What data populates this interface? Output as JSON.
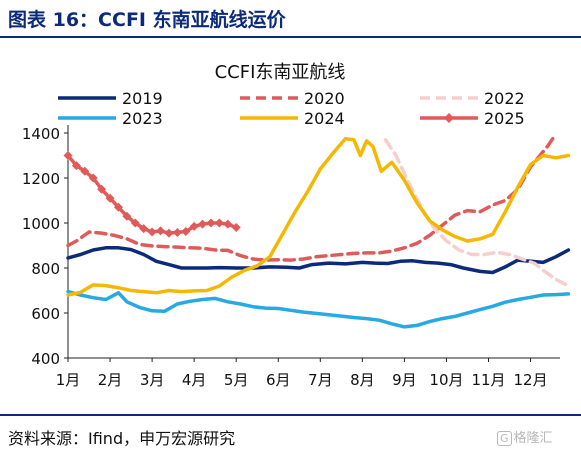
{
  "header": {
    "title": "图表 16：CCFI 东南亚航线运价"
  },
  "footer": {
    "source": "资料来源：Ifind，申万宏源研究",
    "watermark_icon": "G",
    "watermark_text": "格隆汇"
  },
  "chart_data": {
    "type": "line",
    "title": "CCFI东南亚航线",
    "ylim": [
      400,
      1400
    ],
    "yticks": [
      400,
      600,
      800,
      1000,
      1200,
      1400
    ],
    "xlim": [
      1,
      12.7
    ],
    "xticks": [
      {
        "label": "1月",
        "x": 1
      },
      {
        "label": "2月",
        "x": 2
      },
      {
        "label": "3月",
        "x": 3
      },
      {
        "label": "4月",
        "x": 4
      },
      {
        "label": "5月",
        "x": 5
      },
      {
        "label": "6月",
        "x": 6
      },
      {
        "label": "7月",
        "x": 7
      },
      {
        "label": "8月",
        "x": 8
      },
      {
        "label": "9月",
        "x": 9
      },
      {
        "label": "10月",
        "x": 10
      },
      {
        "label": "11月",
        "x": 11
      },
      {
        "label": "12月",
        "x": 12
      }
    ],
    "series": [
      {
        "name": "2019",
        "color": "#0b2a7a",
        "dash": "solid",
        "marker": "none",
        "points": [
          [
            1,
            845
          ],
          [
            1.3,
            860
          ],
          [
            1.6,
            880
          ],
          [
            1.9,
            890
          ],
          [
            2.2,
            890
          ],
          [
            2.5,
            882
          ],
          [
            2.8,
            860
          ],
          [
            3.1,
            830
          ],
          [
            3.4,
            815
          ],
          [
            3.7,
            800
          ],
          [
            4,
            800
          ],
          [
            4.3,
            800
          ],
          [
            4.6,
            802
          ],
          [
            5,
            800
          ],
          [
            5.4,
            800
          ],
          [
            5.8,
            805
          ],
          [
            6.2,
            803
          ],
          [
            6.5,
            800
          ],
          [
            6.8,
            815
          ],
          [
            7.2,
            822
          ],
          [
            7.6,
            818
          ],
          [
            8,
            825
          ],
          [
            8.3,
            822
          ],
          [
            8.6,
            820
          ],
          [
            8.9,
            830
          ],
          [
            9.2,
            832
          ],
          [
            9.5,
            825
          ],
          [
            9.8,
            822
          ],
          [
            10.1,
            815
          ],
          [
            10.4,
            800
          ],
          [
            10.8,
            785
          ],
          [
            11.1,
            780
          ],
          [
            11.4,
            805
          ],
          [
            11.7,
            835
          ],
          [
            12,
            830
          ],
          [
            12.3,
            825
          ],
          [
            12.6,
            850
          ],
          [
            12.9,
            880
          ]
        ]
      },
      {
        "name": "2020",
        "color": "#e05a5a",
        "dash": "dashed",
        "marker": "none",
        "points": [
          [
            1,
            900
          ],
          [
            1.2,
            920
          ],
          [
            1.5,
            960
          ],
          [
            1.8,
            955
          ],
          [
            2.1,
            945
          ],
          [
            2.4,
            930
          ],
          [
            2.7,
            905
          ],
          [
            3,
            898
          ],
          [
            3.3,
            895
          ],
          [
            3.6,
            893
          ],
          [
            3.9,
            890
          ],
          [
            4.2,
            888
          ],
          [
            4.5,
            880
          ],
          [
            4.8,
            878
          ],
          [
            5.1,
            855
          ],
          [
            5.4,
            840
          ],
          [
            5.7,
            835
          ],
          [
            6,
            837
          ],
          [
            6.3,
            835
          ],
          [
            6.6,
            840
          ],
          [
            6.9,
            850
          ],
          [
            7.2,
            855
          ],
          [
            7.5,
            860
          ],
          [
            7.8,
            865
          ],
          [
            8.1,
            867
          ],
          [
            8.4,
            867
          ],
          [
            8.7,
            875
          ],
          [
            9,
            890
          ],
          [
            9.3,
            910
          ],
          [
            9.6,
            945
          ],
          [
            9.9,
            990
          ],
          [
            10.2,
            1035
          ],
          [
            10.5,
            1055
          ],
          [
            10.8,
            1050
          ],
          [
            11.1,
            1080
          ],
          [
            11.4,
            1100
          ],
          [
            11.7,
            1150
          ],
          [
            12,
            1250
          ],
          [
            12.4,
            1340
          ],
          [
            12.6,
            1395
          ]
        ]
      },
      {
        "name": "2022",
        "color": "#f6cece",
        "dash": "dashed",
        "marker": "none",
        "points": [
          [
            8.55,
            1370
          ],
          [
            8.8,
            1300
          ],
          [
            9.1,
            1180
          ],
          [
            9.4,
            1070
          ],
          [
            9.7,
            980
          ],
          [
            10,
            920
          ],
          [
            10.3,
            880
          ],
          [
            10.6,
            860
          ],
          [
            10.9,
            860
          ],
          [
            11.2,
            870
          ],
          [
            11.5,
            860
          ],
          [
            11.8,
            840
          ],
          [
            12.1,
            820
          ],
          [
            12.3,
            790
          ],
          [
            12.6,
            750
          ],
          [
            12.9,
            720
          ]
        ]
      },
      {
        "name": "2023",
        "color": "#27a9e1",
        "dash": "solid",
        "marker": "none",
        "points": [
          [
            1,
            695
          ],
          [
            1.3,
            680
          ],
          [
            1.6,
            668
          ],
          [
            1.9,
            660
          ],
          [
            2.2,
            690
          ],
          [
            2.4,
            650
          ],
          [
            2.7,
            625
          ],
          [
            3,
            610
          ],
          [
            3.3,
            608
          ],
          [
            3.6,
            640
          ],
          [
            3.9,
            652
          ],
          [
            4.2,
            660
          ],
          [
            4.5,
            665
          ],
          [
            4.8,
            650
          ],
          [
            5.1,
            640
          ],
          [
            5.4,
            628
          ],
          [
            5.7,
            622
          ],
          [
            6,
            620
          ],
          [
            6.3,
            612
          ],
          [
            6.6,
            604
          ],
          [
            6.9,
            598
          ],
          [
            7.2,
            592
          ],
          [
            7.5,
            586
          ],
          [
            7.8,
            580
          ],
          [
            8.1,
            575
          ],
          [
            8.4,
            568
          ],
          [
            8.7,
            552
          ],
          [
            9,
            538
          ],
          [
            9.3,
            545
          ],
          [
            9.6,
            562
          ],
          [
            9.9,
            575
          ],
          [
            10.2,
            585
          ],
          [
            10.5,
            600
          ],
          [
            10.8,
            615
          ],
          [
            11.1,
            630
          ],
          [
            11.4,
            648
          ],
          [
            11.7,
            660
          ],
          [
            12,
            670
          ],
          [
            12.3,
            680
          ],
          [
            12.6,
            682
          ],
          [
            12.9,
            685
          ]
        ]
      },
      {
        "name": "2024",
        "color": "#f5b800",
        "dash": "solid",
        "marker": "none",
        "points": [
          [
            1,
            680
          ],
          [
            1.3,
            692
          ],
          [
            1.6,
            725
          ],
          [
            1.9,
            722
          ],
          [
            2.2,
            712
          ],
          [
            2.5,
            700
          ],
          [
            2.8,
            695
          ],
          [
            3.1,
            690
          ],
          [
            3.4,
            700
          ],
          [
            3.7,
            695
          ],
          [
            4,
            698
          ],
          [
            4.3,
            700
          ],
          [
            4.6,
            720
          ],
          [
            4.9,
            760
          ],
          [
            5.2,
            790
          ],
          [
            5.5,
            810
          ],
          [
            5.8,
            850
          ],
          [
            6.1,
            950
          ],
          [
            6.4,
            1050
          ],
          [
            6.7,
            1140
          ],
          [
            7,
            1240
          ],
          [
            7.3,
            1310
          ],
          [
            7.6,
            1375
          ],
          [
            7.8,
            1370
          ],
          [
            7.95,
            1300
          ],
          [
            8.1,
            1365
          ],
          [
            8.25,
            1340
          ],
          [
            8.45,
            1230
          ],
          [
            8.7,
            1270
          ],
          [
            9,
            1190
          ],
          [
            9.3,
            1090
          ],
          [
            9.6,
            1010
          ],
          [
            9.9,
            970
          ],
          [
            10.2,
            940
          ],
          [
            10.5,
            920
          ],
          [
            10.8,
            930
          ],
          [
            11.1,
            950
          ],
          [
            11.4,
            1050
          ],
          [
            11.7,
            1160
          ],
          [
            12,
            1260
          ],
          [
            12.3,
            1300
          ],
          [
            12.6,
            1290
          ],
          [
            12.9,
            1300
          ]
        ]
      },
      {
        "name": "2025",
        "color": "#e05a5a",
        "dash": "solid",
        "marker": "diamond",
        "points": [
          [
            1,
            1300
          ],
          [
            1.2,
            1255
          ],
          [
            1.4,
            1230
          ],
          [
            1.6,
            1200
          ],
          [
            1.8,
            1150
          ],
          [
            2,
            1110
          ],
          [
            2.2,
            1070
          ],
          [
            2.4,
            1030
          ],
          [
            2.6,
            1000
          ],
          [
            2.8,
            975
          ],
          [
            3,
            960
          ],
          [
            3.2,
            965
          ],
          [
            3.4,
            955
          ],
          [
            3.6,
            958
          ],
          [
            3.8,
            962
          ],
          [
            4,
            985
          ],
          [
            4.2,
            995
          ],
          [
            4.4,
            1000
          ],
          [
            4.6,
            1000
          ],
          [
            4.8,
            995
          ],
          [
            5,
            980
          ]
        ]
      }
    ]
  }
}
